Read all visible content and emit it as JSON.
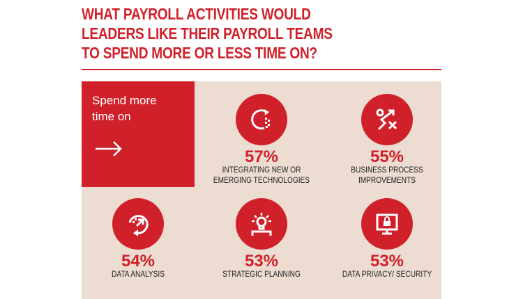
{
  "title": {
    "lines": [
      "WHAT PAYROLL ACTIVITIES WOULD",
      "LEADERS LIKE THEIR PAYROLL TEAMS",
      "TO SPEND MORE OR LESS TIME ON?"
    ]
  },
  "intro": {
    "line1": "Spend more",
    "line2": "time on",
    "icon": "arrow-right-icon"
  },
  "colors": {
    "accent": "#d0212a",
    "panel": "#ecdcd2"
  },
  "items": [
    {
      "percent": "57%",
      "label1": "INTEGRATING NEW OR",
      "label2": "EMERGING TECHNOLOGIES",
      "icon": "refresh-pixels-icon"
    },
    {
      "percent": "55%",
      "label1": "BUSINESS PROCESS",
      "label2": "IMPROVEMENTS",
      "icon": "strategy-play-icon"
    },
    {
      "percent": "54%",
      "label1": "DATA ANALYSIS",
      "label2": "",
      "icon": "data-cycle-icon"
    },
    {
      "percent": "53%",
      "label1": "STRATEGIC PLANNING",
      "label2": "",
      "icon": "lightbulb-icon"
    },
    {
      "percent": "53%",
      "label1": "DATA PRIVACY/ SECURITY",
      "label2": "",
      "icon": "monitor-lock-icon"
    }
  ]
}
